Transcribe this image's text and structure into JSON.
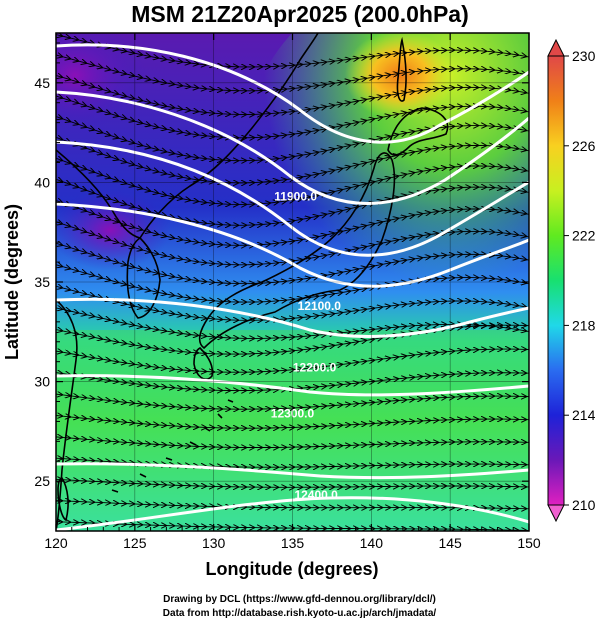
{
  "title": "MSM 21Z20Apr2025 (200.0hPa)",
  "xaxis": {
    "label": "Longitude (degrees)",
    "range": [
      120,
      150
    ],
    "ticks": [
      "120",
      "125",
      "130",
      "135",
      "140",
      "145",
      "150"
    ]
  },
  "yaxis": {
    "label": "Latitude  (degrees)",
    "range": [
      22.5,
      47.5
    ],
    "ticks": [
      "25",
      "30",
      "35",
      "40",
      "45"
    ]
  },
  "colorbar": {
    "range": [
      210,
      230
    ],
    "ticks": [
      "230",
      "226",
      "222",
      "218",
      "214",
      "210"
    ],
    "colors": [
      "#e020c0",
      "#6a18b8",
      "#1e22d8",
      "#2a6cf0",
      "#20d8e8",
      "#18e070",
      "#60ea20",
      "#c8f020",
      "#f8d020",
      "#f08018",
      "#e04848"
    ]
  },
  "contour_labels": [
    {
      "text": "11900.0",
      "lon": 135.2,
      "lat": 39.1
    },
    {
      "text": "12100.0",
      "lon": 136.7,
      "lat": 33.6
    },
    {
      "text": "12200.0",
      "lon": 136.4,
      "lat": 30.5
    },
    {
      "text": "12300.0",
      "lon": 135.0,
      "lat": 28.2
    },
    {
      "text": "12400.0",
      "lon": 136.5,
      "lat": 24.1
    }
  ],
  "credits": {
    "line1": "Drawing by DCL (https://www.gfd-dennou.org/library/dcl/)",
    "line2": "Data from http://database.rish.kyoto-u.ac.jp/arch/jmadata/"
  }
}
